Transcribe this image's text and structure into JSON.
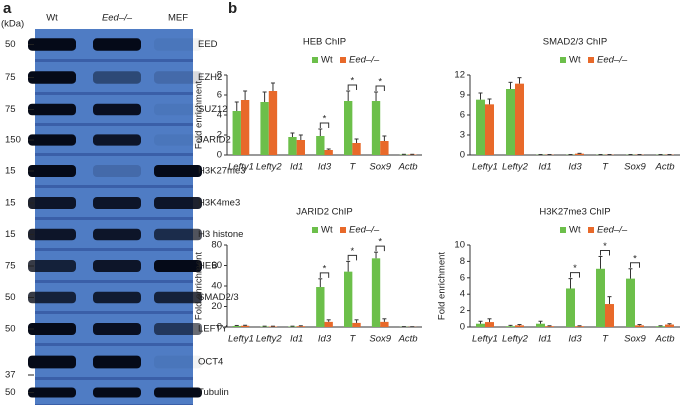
{
  "panel_labels": [
    "a",
    "b"
  ],
  "blot": {
    "unit": "(kDa)",
    "lanes": [
      "Wt",
      "Eed–/–",
      "MEF"
    ],
    "rows": [
      {
        "label": "EED",
        "kda": 50
      },
      {
        "label": "EZH2",
        "kda": 75
      },
      {
        "label": "SUZ12",
        "kda": 75
      },
      {
        "label": "JARID2",
        "kda": 150
      },
      {
        "label": "H3K27me3",
        "kda": 15
      },
      {
        "label": "H3K4me3",
        "kda": 15
      },
      {
        "label": "H3 histone",
        "kda": 15
      },
      {
        "label": "HEB",
        "kda": 75
      },
      {
        "label": "SMAD2/3",
        "kda": 50
      },
      {
        "label": "LEFTY",
        "kda": 50
      },
      {
        "label": "OCT4",
        "kda": 37
      },
      {
        "label": "Tubulin",
        "kda": 50
      }
    ]
  },
  "chart_data": [
    {
      "type": "bar",
      "title": "HEB  ChIP",
      "y_label": "Fold enrichment",
      "categories": [
        "Lefty1",
        "Lefty2",
        "Id1",
        "Id3",
        "T",
        "Sox9",
        "Actb"
      ],
      "series": [
        {
          "name": "Wt",
          "color": "#6cbf4a",
          "values": [
            4.4,
            5.3,
            1.8,
            1.9,
            5.4,
            5.4,
            0.05
          ],
          "errors": [
            0.9,
            1.0,
            0.4,
            0.7,
            1.0,
            0.9,
            0.02
          ]
        },
        {
          "name": "Eed–/–",
          "color": "#e8692a",
          "values": [
            5.5,
            6.4,
            1.5,
            0.5,
            1.2,
            1.4,
            0.05
          ],
          "errors": [
            0.9,
            0.8,
            0.5,
            0.1,
            0.4,
            0.5,
            0.02
          ]
        }
      ],
      "ylim": [
        0,
        8
      ],
      "yticks": [
        0,
        2,
        4,
        6,
        8
      ],
      "annotations": [
        {
          "text": "*",
          "category": "Id3"
        },
        {
          "text": "*",
          "category": "T"
        },
        {
          "text": "*",
          "category": "Sox9"
        }
      ]
    },
    {
      "type": "bar",
      "title": "SMAD2/3  ChIP",
      "y_label": null,
      "categories": [
        "Lefty1",
        "Lefty2",
        "Id1",
        "Id3",
        "T",
        "Sox9",
        "Actb"
      ],
      "series": [
        {
          "name": "Wt",
          "color": "#6cbf4a",
          "values": [
            8.3,
            9.9,
            0.05,
            0.05,
            0.05,
            0.05,
            0.05
          ],
          "errors": [
            1.0,
            1.0,
            0.02,
            0.02,
            0.02,
            0.02,
            0.02
          ]
        },
        {
          "name": "Eed–/–",
          "color": "#e8692a",
          "values": [
            7.6,
            10.7,
            0.05,
            0.2,
            0.05,
            0.05,
            0.05
          ],
          "errors": [
            0.8,
            0.9,
            0.02,
            0.05,
            0.02,
            0.02,
            0.02
          ]
        }
      ],
      "ylim": [
        0,
        12
      ],
      "yticks": [
        0,
        3,
        6,
        9,
        12
      ],
      "annotations": []
    },
    {
      "type": "bar",
      "title": "JARID2  ChIP",
      "y_label": "Fold enrichment",
      "categories": [
        "Lefty1",
        "Lefty2",
        "Id1",
        "Id3",
        "T",
        "Sox9",
        "Actb"
      ],
      "series": [
        {
          "name": "Wt",
          "color": "#6cbf4a",
          "values": [
            1,
            0.5,
            0.5,
            39,
            54,
            67,
            0.3
          ],
          "errors": [
            0.5,
            0.3,
            0.3,
            8,
            10,
            6,
            0.1
          ]
        },
        {
          "name": "Eed–/–",
          "color": "#e8692a",
          "values": [
            1.2,
            0.5,
            0.8,
            5,
            4,
            5,
            0.2
          ],
          "errors": [
            0.5,
            0.3,
            0.4,
            2,
            3,
            3,
            0.1
          ]
        }
      ],
      "ylim": [
        0,
        80
      ],
      "yticks": [
        0,
        20,
        40,
        60,
        80
      ],
      "annotations": [
        {
          "text": "*",
          "category": "Id3"
        },
        {
          "text": "*",
          "category": "T"
        },
        {
          "text": "*",
          "category": "Sox9"
        }
      ]
    },
    {
      "type": "bar",
      "title": "H3K27me3  ChIP",
      "y_label": "Fold enrichment",
      "categories": [
        "Lefty1",
        "Lefty2",
        "Id1",
        "Id3",
        "T",
        "Sox9",
        "Actb"
      ],
      "series": [
        {
          "name": "Wt",
          "color": "#6cbf4a",
          "values": [
            0.4,
            0.1,
            0.4,
            4.7,
            7.1,
            5.9,
            0.1
          ],
          "errors": [
            0.3,
            0.1,
            0.3,
            1.2,
            1.5,
            1.2,
            0.05
          ]
        },
        {
          "name": "Eed–/–",
          "color": "#e8692a",
          "values": [
            0.6,
            0.2,
            0.1,
            0.1,
            2.8,
            0.2,
            0.3
          ],
          "errors": [
            0.4,
            0.1,
            0.05,
            0.05,
            0.9,
            0.1,
            0.1
          ]
        }
      ],
      "ylim": [
        0,
        10
      ],
      "yticks": [
        0,
        2,
        4,
        6,
        8,
        10
      ],
      "annotations": [
        {
          "text": "*",
          "category": "Id3"
        },
        {
          "text": "*",
          "category": "T"
        },
        {
          "text": "*",
          "category": "Sox9"
        }
      ]
    }
  ]
}
